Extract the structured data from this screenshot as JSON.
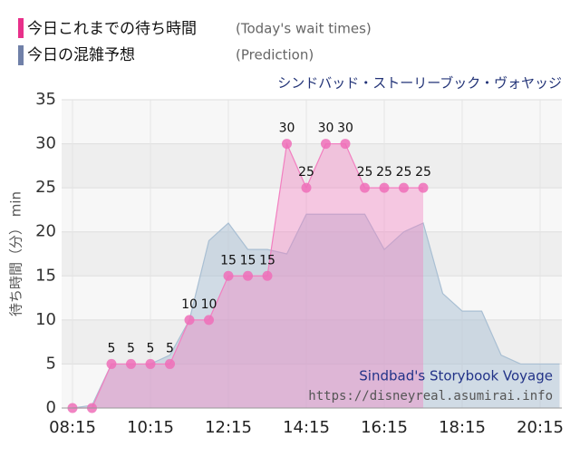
{
  "chart_data": {
    "type": "area",
    "title": "シンドバッド・ストーリーブック・ヴォヤッジ",
    "y_label": "待ち時間（分） min",
    "annotations": [
      "Sindbad's Storybook Voyage",
      "https://disneyreal.asumirai.info"
    ],
    "categories": [
      "08:15",
      null,
      null,
      null,
      "10:15",
      null,
      null,
      null,
      "12:15",
      null,
      null,
      null,
      "14:15",
      null,
      null,
      null,
      "16:15",
      null,
      null,
      null,
      "18:15",
      null,
      null,
      null,
      "20:15",
      null
    ],
    "series": [
      {
        "name": "今日の混雑予想",
        "note": "(Prediction)",
        "color": "#7080a8",
        "values": [
          0,
          0.3,
          5,
          5,
          5,
          6,
          10,
          19,
          21,
          18,
          18,
          17.5,
          22,
          22,
          22,
          22,
          18,
          20,
          21,
          13,
          11,
          11,
          6,
          5,
          5,
          5
        ]
      },
      {
        "name": "今日これまでの待ち時間",
        "note": "(Today's wait times)",
        "color": "#e8308a",
        "values": [
          0,
          0,
          5,
          5,
          5,
          5,
          10,
          10,
          15,
          15,
          15,
          30,
          25,
          30,
          30,
          25,
          25,
          25,
          25,
          null,
          null,
          null,
          null,
          null,
          null,
          null
        ]
      }
    ],
    "ylim": [
      0,
      35
    ],
    "yticks": [
      0,
      5,
      10,
      15,
      20,
      25,
      30,
      35
    ],
    "grid": true
  }
}
